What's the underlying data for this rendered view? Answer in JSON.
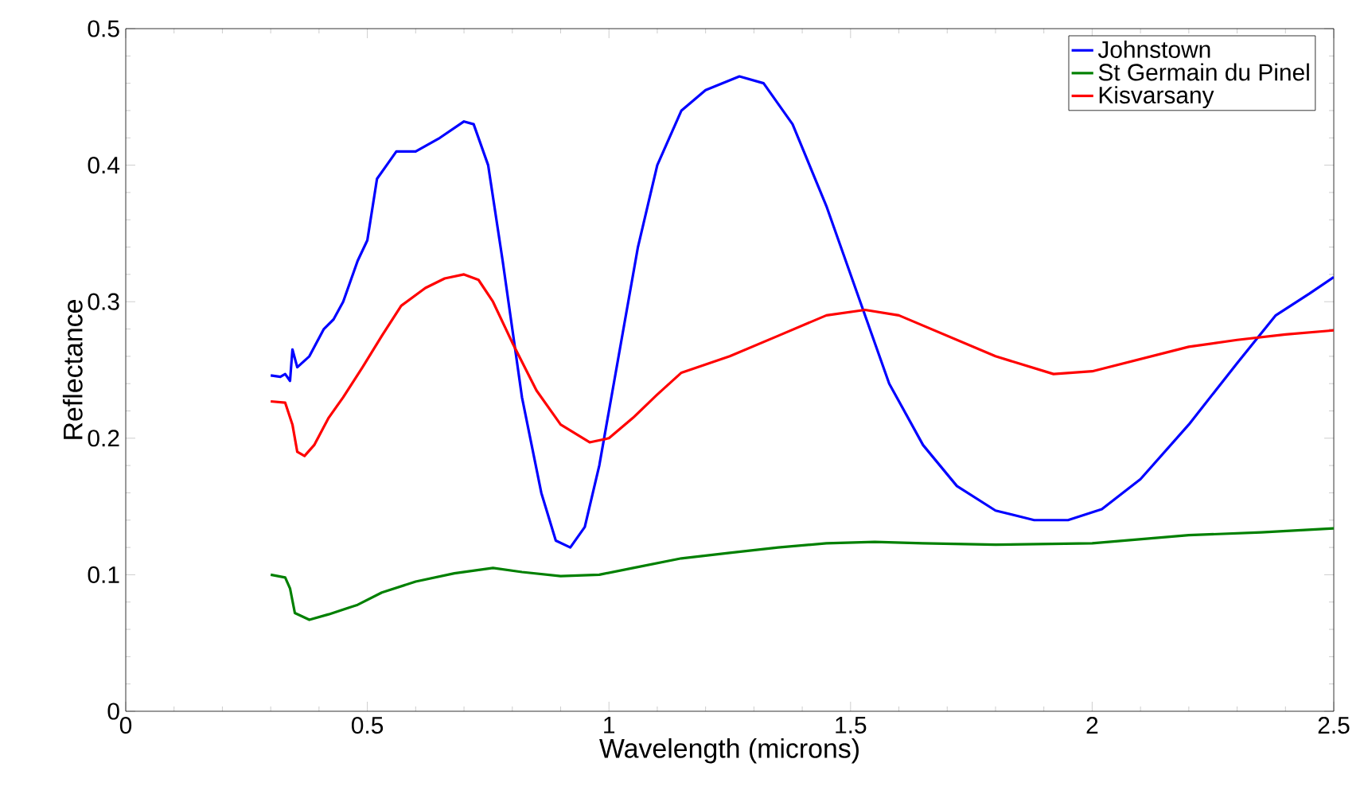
{
  "chart_data": {
    "type": "line",
    "xlabel": "Wavelength (microns)",
    "ylabel": "Reflectance",
    "xlim": [
      0,
      2.5
    ],
    "ylim": [
      0,
      0.5
    ],
    "xticks": [
      0,
      0.5,
      1,
      1.5,
      2,
      2.5
    ],
    "yticks": [
      0,
      0.1,
      0.2,
      0.3,
      0.4,
      0.5
    ],
    "grid": false,
    "legend": "top right",
    "marker": "none",
    "line_style": "solid",
    "series": [
      {
        "name": "Johnstown",
        "color": "#0000ff",
        "x": [
          0.3,
          0.32,
          0.33,
          0.34,
          0.345,
          0.355,
          0.38,
          0.41,
          0.43,
          0.45,
          0.48,
          0.5,
          0.52,
          0.54,
          0.56,
          0.6,
          0.65,
          0.7,
          0.72,
          0.75,
          0.78,
          0.82,
          0.86,
          0.89,
          0.92,
          0.95,
          0.98,
          1.02,
          1.06,
          1.1,
          1.15,
          1.2,
          1.27,
          1.32,
          1.38,
          1.45,
          1.52,
          1.58,
          1.65,
          1.72,
          1.8,
          1.88,
          1.95,
          2.02,
          2.1,
          2.2,
          2.3,
          2.38,
          2.45,
          2.5
        ],
        "values": [
          0.246,
          0.245,
          0.247,
          0.242,
          0.265,
          0.252,
          0.26,
          0.28,
          0.287,
          0.3,
          0.33,
          0.345,
          0.39,
          0.4,
          0.41,
          0.41,
          0.42,
          0.432,
          0.43,
          0.4,
          0.33,
          0.23,
          0.16,
          0.125,
          0.12,
          0.135,
          0.18,
          0.26,
          0.34,
          0.4,
          0.44,
          0.455,
          0.465,
          0.46,
          0.43,
          0.37,
          0.3,
          0.24,
          0.195,
          0.165,
          0.147,
          0.14,
          0.14,
          0.148,
          0.17,
          0.21,
          0.255,
          0.29,
          0.306,
          0.318
        ]
      },
      {
        "name": "St Germain du Pinel",
        "color": "#008000",
        "x": [
          0.3,
          0.33,
          0.34,
          0.35,
          0.38,
          0.42,
          0.48,
          0.53,
          0.6,
          0.68,
          0.76,
          0.82,
          0.9,
          0.98,
          1.05,
          1.15,
          1.25,
          1.35,
          1.45,
          1.55,
          1.65,
          1.8,
          2.0,
          2.1,
          2.2,
          2.35,
          2.5
        ],
        "values": [
          0.1,
          0.098,
          0.09,
          0.072,
          0.067,
          0.071,
          0.078,
          0.087,
          0.095,
          0.101,
          0.105,
          0.102,
          0.099,
          0.1,
          0.105,
          0.112,
          0.116,
          0.12,
          0.123,
          0.124,
          0.123,
          0.122,
          0.123,
          0.126,
          0.129,
          0.131,
          0.134
        ]
      },
      {
        "name": "Kisvarsany",
        "color": "#ff0000",
        "x": [
          0.3,
          0.33,
          0.345,
          0.355,
          0.37,
          0.39,
          0.42,
          0.45,
          0.49,
          0.53,
          0.57,
          0.62,
          0.66,
          0.7,
          0.73,
          0.76,
          0.8,
          0.85,
          0.9,
          0.96,
          1.0,
          1.05,
          1.1,
          1.15,
          1.25,
          1.35,
          1.45,
          1.53,
          1.6,
          1.7,
          1.8,
          1.92,
          2.0,
          2.1,
          2.2,
          2.3,
          2.4,
          2.5
        ],
        "values": [
          0.227,
          0.226,
          0.21,
          0.19,
          0.187,
          0.195,
          0.215,
          0.23,
          0.252,
          0.275,
          0.297,
          0.31,
          0.317,
          0.32,
          0.316,
          0.3,
          0.27,
          0.235,
          0.21,
          0.197,
          0.2,
          0.215,
          0.232,
          0.248,
          0.26,
          0.275,
          0.29,
          0.294,
          0.29,
          0.275,
          0.26,
          0.247,
          0.249,
          0.258,
          0.267,
          0.272,
          0.276,
          0.279
        ]
      }
    ]
  }
}
